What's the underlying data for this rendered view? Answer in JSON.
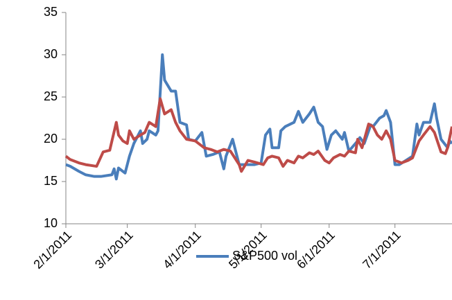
{
  "chart_data": {
    "type": "line",
    "xlim": [
      "2011-02-01",
      "2011-07-27"
    ],
    "xticks": [
      {
        "value": "2011-02-01",
        "label": "2/1/2011"
      },
      {
        "value": "2011-03-01",
        "label": "3/1/2011"
      },
      {
        "value": "2011-04-01",
        "label": "4/1/2011"
      },
      {
        "value": "2011-05-01",
        "label": "5/1/2011"
      },
      {
        "value": "2011-06-01",
        "label": "6/1/2011"
      },
      {
        "value": "2011-07-01",
        "label": "7/1/2011"
      }
    ],
    "ylim": [
      10,
      35
    ],
    "yticks": [
      10,
      15,
      20,
      25,
      30,
      35
    ],
    "legend": "bottom",
    "series": [
      {
        "name": "S&P500 vol",
        "color": "#4a7ebb",
        "x": [
          "2011-02-01",
          "2011-02-03",
          "2011-02-07",
          "2011-02-10",
          "2011-02-14",
          "2011-02-17",
          "2011-02-22",
          "2011-02-23",
          "2011-02-24",
          "2011-02-25",
          "2011-02-28",
          "2011-03-02",
          "2011-03-04",
          "2011-03-07",
          "2011-03-08",
          "2011-03-10",
          "2011-03-11",
          "2011-03-14",
          "2011-03-15",
          "2011-03-17",
          "2011-03-18",
          "2011-03-21",
          "2011-03-23",
          "2011-03-25",
          "2011-03-28",
          "2011-03-29",
          "2011-04-01",
          "2011-04-04",
          "2011-04-06",
          "2011-04-09",
          "2011-04-12",
          "2011-04-14",
          "2011-04-15",
          "2011-04-18",
          "2011-04-21",
          "2011-04-25",
          "2011-04-28",
          "2011-05-01",
          "2011-05-03",
          "2011-05-05",
          "2011-05-06",
          "2011-05-09",
          "2011-05-10",
          "2011-05-12",
          "2011-05-16",
          "2011-05-18",
          "2011-05-20",
          "2011-05-23",
          "2011-05-25",
          "2011-05-27",
          "2011-05-29",
          "2011-05-31",
          "2011-06-02",
          "2011-06-04",
          "2011-06-07",
          "2011-06-08",
          "2011-06-10",
          "2011-06-14",
          "2011-06-15",
          "2011-06-17",
          "2011-06-20",
          "2011-06-21",
          "2011-06-24",
          "2011-06-26",
          "2011-06-27",
          "2011-06-29",
          "2011-07-01",
          "2011-07-03",
          "2011-07-06",
          "2011-07-09",
          "2011-07-11",
          "2011-07-12",
          "2011-07-14",
          "2011-07-17",
          "2011-07-19",
          "2011-07-20",
          "2011-07-22",
          "2011-07-25",
          "2011-07-26",
          "2011-07-27"
        ],
        "values": [
          17,
          16.8,
          16.2,
          15.8,
          15.6,
          15.6,
          15.8,
          16.5,
          15.3,
          16.6,
          16,
          18,
          19.5,
          21,
          19.5,
          20,
          21,
          20.5,
          21,
          30,
          27,
          25.7,
          25.7,
          22,
          21.7,
          20,
          19.8,
          20.8,
          18,
          18.2,
          18.5,
          16.5,
          18,
          20,
          17,
          17,
          17,
          17.2,
          20.5,
          21.2,
          19,
          19,
          21,
          21.5,
          22,
          23.3,
          22,
          23,
          23.8,
          22,
          21.5,
          18.8,
          20.5,
          21,
          20,
          20.8,
          18.6,
          19.8,
          20.2,
          19.5,
          21.7,
          21.5,
          22.5,
          22.8,
          23.4,
          22,
          17,
          17,
          17.5,
          18,
          21.8,
          20.5,
          22,
          22,
          24.2,
          22.5,
          20,
          19,
          19.8,
          19.5
        ]
      },
      {
        "color": "#be4b48",
        "x": [
          "2011-02-01",
          "2011-02-03",
          "2011-02-07",
          "2011-02-10",
          "2011-02-15",
          "2011-02-18",
          "2011-02-21",
          "2011-02-24",
          "2011-02-25",
          "2011-02-27",
          "2011-03-01",
          "2011-03-02",
          "2011-03-04",
          "2011-03-07",
          "2011-03-09",
          "2011-03-11",
          "2011-03-14",
          "2011-03-16",
          "2011-03-18",
          "2011-03-21",
          "2011-03-23",
          "2011-03-25",
          "2011-03-28",
          "2011-04-01",
          "2011-04-05",
          "2011-04-08",
          "2011-04-11",
          "2011-04-14",
          "2011-04-17",
          "2011-04-21",
          "2011-04-22",
          "2011-04-25",
          "2011-04-28",
          "2011-05-02",
          "2011-05-04",
          "2011-05-06",
          "2011-05-09",
          "2011-05-11",
          "2011-05-13",
          "2011-05-16",
          "2011-05-18",
          "2011-05-20",
          "2011-05-23",
          "2011-05-25",
          "2011-05-27",
          "2011-05-30",
          "2011-06-01",
          "2011-06-03",
          "2011-06-06",
          "2011-06-08",
          "2011-06-10",
          "2011-06-13",
          "2011-06-14",
          "2011-06-16",
          "2011-06-19",
          "2011-06-21",
          "2011-06-23",
          "2011-06-25",
          "2011-06-27",
          "2011-06-29",
          "2011-07-01",
          "2011-07-04",
          "2011-07-07",
          "2011-07-09",
          "2011-07-12",
          "2011-07-14",
          "2011-07-17",
          "2011-07-19",
          "2011-07-22",
          "2011-07-24",
          "2011-07-25",
          "2011-07-27"
        ],
        "values": [
          18,
          17.6,
          17.2,
          17,
          16.8,
          18.5,
          18.7,
          22,
          20.5,
          19.8,
          19.5,
          21,
          20,
          20.5,
          20.8,
          22,
          21.5,
          24.8,
          23,
          23.5,
          22,
          21,
          20,
          19.8,
          19,
          18.8,
          18.5,
          18.8,
          18.6,
          17,
          16.2,
          17.5,
          17.3,
          17,
          17.8,
          18,
          17.8,
          16.8,
          17.5,
          17.2,
          18,
          17.8,
          18.4,
          18.2,
          18.6,
          17.5,
          17.2,
          17.8,
          18.2,
          18,
          18.6,
          18.4,
          20,
          19,
          21.8,
          21.5,
          20.5,
          20,
          21,
          20,
          17.5,
          17.2,
          17.5,
          17.8,
          19.8,
          20.5,
          21.5,
          20.8,
          18.5,
          18.3,
          19,
          21.5
        ]
      }
    ]
  }
}
